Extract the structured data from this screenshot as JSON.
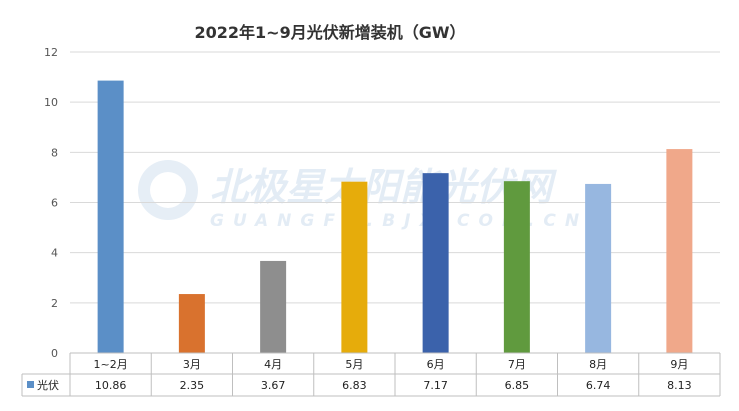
{
  "watermark": {
    "main": "北极星太阳能光伏网",
    "sub": "GUANGFU.BJX.COM.CN"
  },
  "chart_data": {
    "type": "bar",
    "title": "2022年1~9月光伏新增装机（GW）",
    "categories": [
      "1~2月",
      "3月",
      "4月",
      "5月",
      "6月",
      "7月",
      "8月",
      "9月"
    ],
    "series": [
      {
        "name": "光伏",
        "values": [
          10.86,
          2.35,
          3.67,
          6.83,
          7.17,
          6.85,
          6.74,
          8.13
        ],
        "value_labels": [
          "10.86",
          "2.35",
          "3.67",
          "6.83",
          "7.17",
          "6.85",
          "6.74",
          "8.13"
        ]
      }
    ],
    "bar_colors": [
      "#5b8fc7",
      "#d9722e",
      "#8e8e8e",
      "#e6ac0b",
      "#3b62ab",
      "#609a3e",
      "#97b7e0",
      "#f0a88a"
    ],
    "legend_color": "#5b8fc7",
    "ylim": [
      0,
      12
    ],
    "yticks": [
      0,
      2,
      4,
      6,
      8,
      10,
      12
    ],
    "grid": true,
    "data_table": true
  }
}
